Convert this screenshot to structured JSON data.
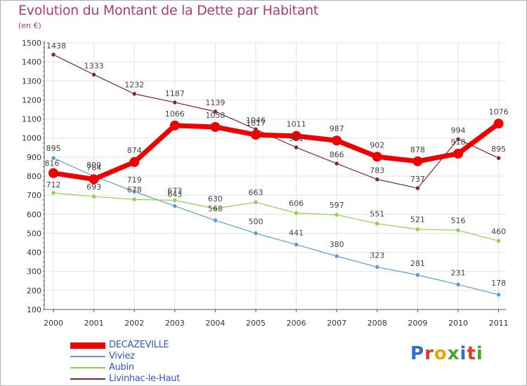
{
  "title": "Evolution du Montant de la Dette par Habitant",
  "subtitle": "(en €)",
  "logo": {
    "text": "Proxiti",
    "colors": [
      "#2a6fc9",
      "#e23b2a",
      "#f2a100",
      "#4aa82a",
      "#2a6fc9",
      "#e23b2a",
      "#4aa82a"
    ]
  },
  "chart_data": {
    "type": "line",
    "categories": [
      "2000",
      "2001",
      "2002",
      "2003",
      "2004",
      "2005",
      "2006",
      "2007",
      "2008",
      "2009",
      "2010",
      "2011"
    ],
    "yticks": [
      100,
      200,
      300,
      400,
      500,
      600,
      700,
      800,
      900,
      1000,
      1100,
      1200,
      1300,
      1400,
      1500
    ],
    "ylim": [
      100,
      1500
    ],
    "grid": true,
    "legend": "bottom-left",
    "series": [
      {
        "name": "DECAZEVILLE",
        "color": "#ee0000",
        "values": [
          816,
          784,
          874,
          1066,
          1058,
          1017,
          1011,
          987,
          902,
          878,
          918,
          1076
        ],
        "labels": [
          "816",
          "784",
          "874",
          "1066",
          "1058",
          "1017",
          "1011",
          "987",
          "902",
          "878",
          "918",
          "1076"
        ]
      },
      {
        "name": "Viviez",
        "color": "#5b9bd5",
        "values": [
          895,
          800,
          719,
          643,
          568,
          500,
          441,
          380,
          323,
          281,
          231,
          178
        ],
        "labels": [
          "895",
          "800",
          "719",
          "643",
          "568",
          "500",
          "441",
          "380",
          "323",
          "281",
          "231",
          "178"
        ]
      },
      {
        "name": "Aubin",
        "color": "#8fd14f",
        "values": [
          712,
          693,
          678,
          673,
          630,
          663,
          606,
          597,
          551,
          521,
          516,
          460
        ],
        "labels": [
          "712",
          "693",
          "678",
          "673",
          "630",
          "663",
          "606",
          "597",
          "551",
          "521",
          "516",
          "460"
        ]
      },
      {
        "name": "Livinhac-le-Haut",
        "color": "#7b2a2a",
        "values": [
          1438,
          1333,
          1232,
          1187,
          1139,
          1046,
          951,
          866,
          783,
          737,
          994,
          895
        ],
        "labels": [
          "1438",
          "1333",
          "1232",
          "1187",
          "1139",
          "1046",
          "951",
          "866",
          "783",
          "737",
          "994",
          "895"
        ]
      }
    ]
  }
}
